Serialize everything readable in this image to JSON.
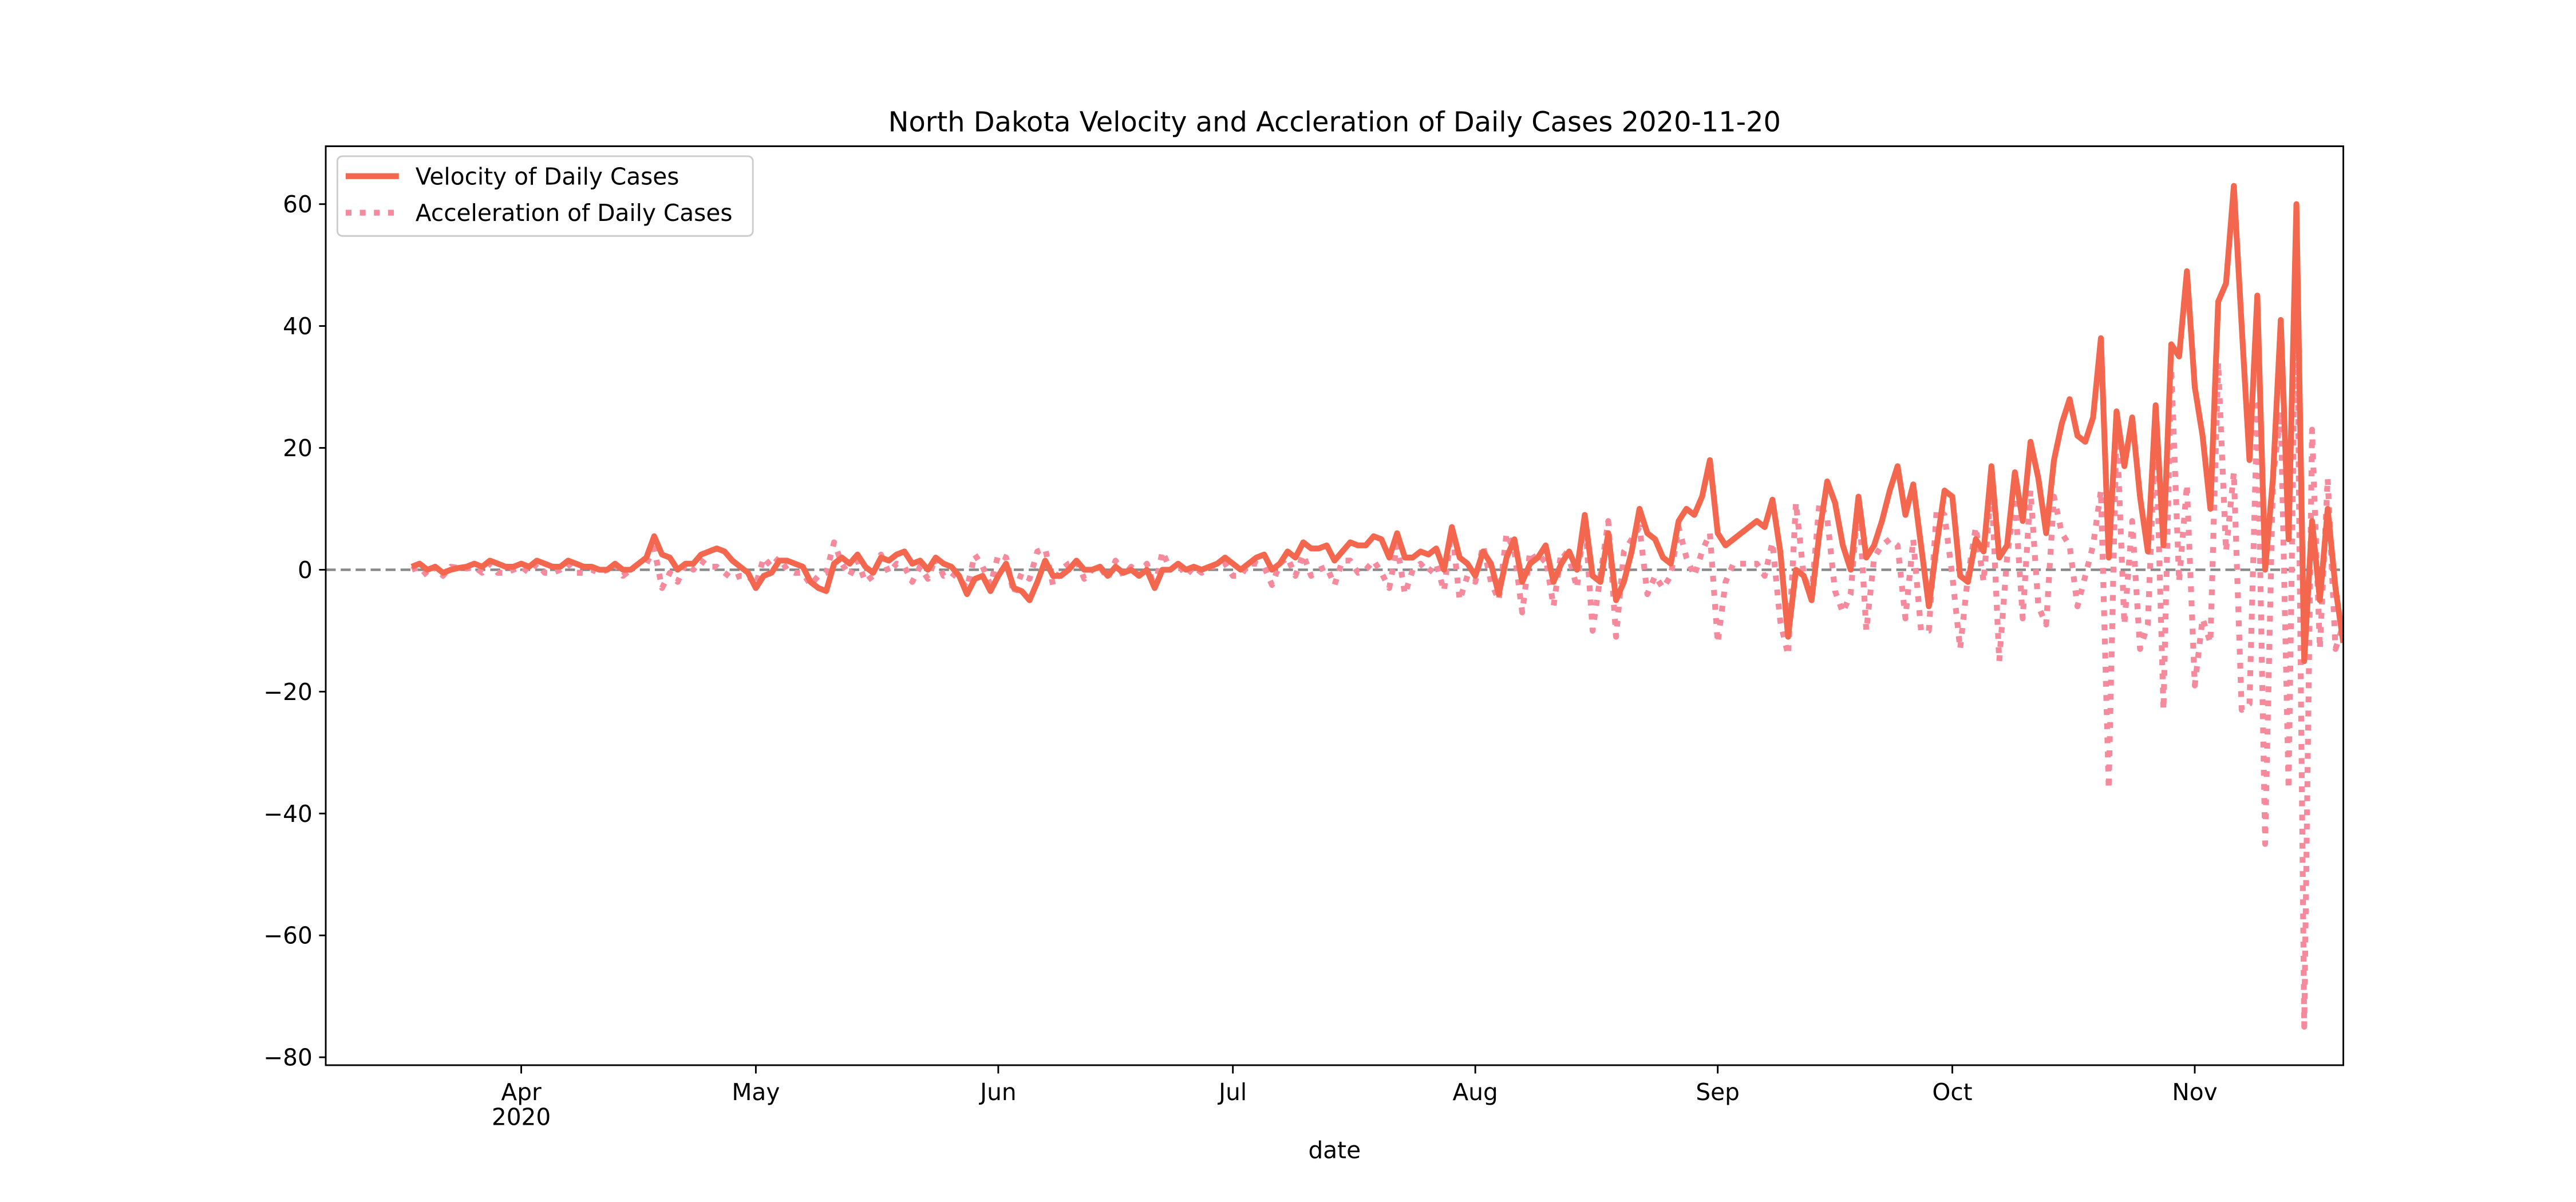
{
  "chart_data": {
    "type": "line",
    "title": "North Dakota Velocity and Accleration of Daily Cases 2020-11-20",
    "xlabel": "date",
    "xlim": [
      "2020-03-07",
      "2020-11-20"
    ],
    "xticks": [
      {
        "value": "2020-04-01",
        "label": "Apr"
      },
      {
        "value": "2020-05-01",
        "label": "May"
      },
      {
        "value": "2020-06-01",
        "label": "Jun"
      },
      {
        "value": "2020-07-01",
        "label": "Jul"
      },
      {
        "value": "2020-08-01",
        "label": "Aug"
      },
      {
        "value": "2020-09-01",
        "label": "Sep"
      },
      {
        "value": "2020-10-01",
        "label": "Oct"
      },
      {
        "value": "2020-11-01",
        "label": "Nov"
      }
    ],
    "xtick_year": "2020",
    "ylim": [
      -81.3,
      69.5
    ],
    "yticks": [
      {
        "value": -80,
        "label": "−80"
      },
      {
        "value": -60,
        "label": "−60"
      },
      {
        "value": -40,
        "label": "−40"
      },
      {
        "value": -20,
        "label": "−20"
      },
      0,
      20,
      40,
      60
    ],
    "hline": 0,
    "legend": "upper left",
    "x": [
      "2020-03-18",
      "2020-03-19",
      "2020-03-20",
      "2020-03-21",
      "2020-03-22",
      "2020-03-23",
      "2020-03-24",
      "2020-03-25",
      "2020-03-26",
      "2020-03-27",
      "2020-03-28",
      "2020-03-29",
      "2020-03-30",
      "2020-03-31",
      "2020-04-01",
      "2020-04-02",
      "2020-04-03",
      "2020-04-04",
      "2020-04-05",
      "2020-04-06",
      "2020-04-07",
      "2020-04-08",
      "2020-04-09",
      "2020-04-10",
      "2020-04-11",
      "2020-04-12",
      "2020-04-13",
      "2020-04-14",
      "2020-04-15",
      "2020-04-16",
      "2020-04-17",
      "2020-04-18",
      "2020-04-19",
      "2020-04-20",
      "2020-04-21",
      "2020-04-22",
      "2020-04-23",
      "2020-04-24",
      "2020-04-25",
      "2020-04-26",
      "2020-04-27",
      "2020-04-28",
      "2020-04-29",
      "2020-04-30",
      "2020-05-01",
      "2020-05-02",
      "2020-05-03",
      "2020-05-04",
      "2020-05-05",
      "2020-05-06",
      "2020-05-07",
      "2020-05-08",
      "2020-05-09",
      "2020-05-10",
      "2020-05-11",
      "2020-05-12",
      "2020-05-13",
      "2020-05-14",
      "2020-05-15",
      "2020-05-16",
      "2020-05-17",
      "2020-05-18",
      "2020-05-19",
      "2020-05-20",
      "2020-05-21",
      "2020-05-22",
      "2020-05-23",
      "2020-05-24",
      "2020-05-25",
      "2020-05-26",
      "2020-05-27",
      "2020-05-28",
      "2020-05-29",
      "2020-05-30",
      "2020-05-31",
      "2020-06-01",
      "2020-06-02",
      "2020-06-03",
      "2020-06-04",
      "2020-06-05",
      "2020-06-06",
      "2020-06-07",
      "2020-06-08",
      "2020-06-09",
      "2020-06-10",
      "2020-06-11",
      "2020-06-12",
      "2020-06-13",
      "2020-06-14",
      "2020-06-15",
      "2020-06-16",
      "2020-06-17",
      "2020-06-18",
      "2020-06-19",
      "2020-06-20",
      "2020-06-21",
      "2020-06-22",
      "2020-06-23",
      "2020-06-24",
      "2020-06-25",
      "2020-06-26",
      "2020-06-27",
      "2020-06-28",
      "2020-06-29",
      "2020-06-30",
      "2020-07-01",
      "2020-07-02",
      "2020-07-03",
      "2020-07-04",
      "2020-07-05",
      "2020-07-06",
      "2020-07-07",
      "2020-07-08",
      "2020-07-09",
      "2020-07-10",
      "2020-07-11",
      "2020-07-12",
      "2020-07-13",
      "2020-07-14",
      "2020-07-15",
      "2020-07-16",
      "2020-07-17",
      "2020-07-18",
      "2020-07-19",
      "2020-07-20",
      "2020-07-21",
      "2020-07-22",
      "2020-07-23",
      "2020-07-24",
      "2020-07-25",
      "2020-07-26",
      "2020-07-27",
      "2020-07-28",
      "2020-07-29",
      "2020-07-30",
      "2020-07-31",
      "2020-08-01",
      "2020-08-02",
      "2020-08-03",
      "2020-08-04",
      "2020-08-05",
      "2020-08-06",
      "2020-08-07",
      "2020-08-08",
      "2020-08-09",
      "2020-08-10",
      "2020-08-11",
      "2020-08-12",
      "2020-08-13",
      "2020-08-14",
      "2020-08-15",
      "2020-08-16",
      "2020-08-17",
      "2020-08-18",
      "2020-08-19",
      "2020-08-20",
      "2020-08-21",
      "2020-08-22",
      "2020-08-23",
      "2020-08-24",
      "2020-08-25",
      "2020-08-26",
      "2020-08-27",
      "2020-08-28",
      "2020-08-29",
      "2020-08-30",
      "2020-08-31",
      "2020-09-01",
      "2020-09-02",
      "2020-09-03",
      "2020-09-04",
      "2020-09-05",
      "2020-09-06",
      "2020-09-07",
      "2020-09-08",
      "2020-09-09",
      "2020-09-10",
      "2020-09-11",
      "2020-09-12",
      "2020-09-13",
      "2020-09-14",
      "2020-09-15",
      "2020-09-16",
      "2020-09-17",
      "2020-09-18",
      "2020-09-19",
      "2020-09-20",
      "2020-09-21",
      "2020-09-22",
      "2020-09-23",
      "2020-09-24",
      "2020-09-25",
      "2020-09-26",
      "2020-09-27",
      "2020-09-28",
      "2020-09-29",
      "2020-09-30",
      "2020-10-01",
      "2020-10-02",
      "2020-10-03",
      "2020-10-04",
      "2020-10-05",
      "2020-10-06",
      "2020-10-07",
      "2020-10-08",
      "2020-10-09",
      "2020-10-10",
      "2020-10-11",
      "2020-10-12",
      "2020-10-13",
      "2020-10-14",
      "2020-10-15",
      "2020-10-16",
      "2020-10-17",
      "2020-10-18",
      "2020-10-19",
      "2020-10-20",
      "2020-10-21",
      "2020-10-22",
      "2020-10-23",
      "2020-10-24",
      "2020-10-25",
      "2020-10-26",
      "2020-10-27",
      "2020-10-28",
      "2020-10-29",
      "2020-10-30",
      "2020-10-31",
      "2020-11-01",
      "2020-11-02",
      "2020-11-03",
      "2020-11-04",
      "2020-11-05",
      "2020-11-06",
      "2020-11-07",
      "2020-11-08",
      "2020-11-09",
      "2020-11-10",
      "2020-11-11",
      "2020-11-12",
      "2020-11-13",
      "2020-11-14",
      "2020-11-15",
      "2020-11-16",
      "2020-11-17",
      "2020-11-18",
      "2020-11-19",
      "2020-11-20"
    ],
    "series": [
      {
        "name": "Velocity of Daily Cases",
        "color": "#f4674f",
        "style": "solid",
        "values": [
          0.5,
          1,
          0,
          0.5,
          -0.5,
          0,
          0.3,
          0.5,
          1,
          0.5,
          1.5,
          1,
          0.5,
          0.5,
          1,
          0.5,
          1.5,
          1,
          0.5,
          0.5,
          1.5,
          1,
          0.5,
          0.5,
          0,
          0,
          1,
          0,
          0,
          1,
          2,
          5.5,
          2.5,
          2,
          0,
          1,
          1,
          2.5,
          3,
          3.5,
          3,
          1.5,
          0.5,
          -0.5,
          -3,
          -1,
          -0.5,
          1.5,
          1.5,
          1,
          0.5,
          -2,
          -3,
          -3.5,
          1,
          2,
          1,
          2.5,
          0.5,
          -0.5,
          2,
          1.5,
          2.5,
          3,
          1,
          1.5,
          0,
          2,
          1,
          0.5,
          -1,
          -4,
          -1.5,
          -1,
          -3.5,
          -1,
          1,
          -3,
          -3.5,
          -5,
          -2,
          1.5,
          -1,
          -1,
          0,
          1.5,
          0,
          0,
          0.5,
          -1,
          0.5,
          -0.5,
          0,
          -1,
          0,
          -3,
          0,
          0,
          1,
          0,
          0.5,
          0,
          0.5,
          1,
          2,
          1,
          0,
          1,
          2,
          2.5,
          0,
          1,
          3,
          2,
          4.5,
          3.5,
          3.5,
          4,
          1.5,
          3,
          4.5,
          4,
          4,
          5.5,
          5,
          2,
          6,
          2,
          2,
          3,
          2.5,
          3.5,
          0,
          7,
          2,
          1,
          -1,
          3,
          1,
          -4,
          2,
          5,
          -2,
          1,
          2,
          4,
          -2,
          1,
          3,
          0,
          9,
          -1,
          -2,
          6,
          -5,
          -2,
          3,
          10,
          6,
          5,
          2,
          1,
          8,
          10,
          9,
          12,
          18,
          6,
          4,
          5,
          6,
          7,
          8,
          7,
          11.5,
          3,
          -11,
          0,
          -1,
          -5,
          6,
          14.5,
          11,
          4,
          0,
          12,
          2,
          4,
          8,
          13,
          17,
          9,
          14,
          4,
          -6,
          4,
          13,
          12,
          -1,
          -2,
          5,
          3,
          17,
          2,
          4,
          16,
          8,
          21,
          15,
          6,
          18,
          24,
          28,
          22,
          21,
          25,
          38,
          2,
          26,
          17,
          25,
          12,
          3,
          27,
          4,
          37,
          35,
          49,
          30,
          22,
          10,
          44,
          47,
          63,
          40,
          18,
          45,
          0,
          15,
          41,
          5,
          60,
          -15,
          8,
          -5,
          10,
          -3,
          -12
        ]
      },
      {
        "name": "Acceleration of Daily Cases",
        "color": "#f58a9c",
        "style": "dotted",
        "values": [
          0,
          0.5,
          -1,
          0.5,
          -1,
          0.5,
          0.3,
          0.2,
          0.5,
          -0.5,
          1,
          -0.5,
          -0.5,
          0,
          0.5,
          -0.5,
          1,
          -0.5,
          -0.5,
          0,
          1,
          -0.5,
          -0.5,
          0,
          -0.5,
          0,
          1,
          -1,
          0,
          1,
          1,
          3.5,
          -3,
          -0.5,
          -2,
          1,
          0,
          1.5,
          0.5,
          0.5,
          -0.5,
          -1.5,
          -1,
          -1,
          -2.5,
          2,
          0.5,
          2,
          0,
          -0.5,
          -0.5,
          -2.5,
          -1,
          -0.5,
          4.5,
          1,
          -1,
          1.5,
          -2,
          -1,
          2.5,
          -0.5,
          1,
          0.5,
          -2,
          0.5,
          -1.5,
          2,
          -1,
          -0.5,
          -1.5,
          -3,
          2.5,
          0.5,
          -2.5,
          2.5,
          2,
          -4,
          -0.5,
          -1.5,
          3,
          3.5,
          -2.5,
          0,
          1,
          1.5,
          -1.5,
          0,
          0.5,
          -1.5,
          1.5,
          -1,
          0.5,
          -1,
          1,
          -3,
          3,
          0,
          1,
          -1,
          0.5,
          -0.5,
          0.5,
          0.5,
          1,
          -1,
          -1,
          1,
          1,
          0.5,
          -2.5,
          1,
          2,
          -1,
          2.5,
          -1,
          0,
          0.5,
          -2.5,
          1.5,
          1.5,
          -0.5,
          0,
          1.5,
          -0.5,
          -3,
          4,
          -4,
          0,
          1,
          -0.5,
          1,
          -3.5,
          7,
          -5,
          -1,
          -2,
          4,
          -2,
          -5,
          6,
          3,
          -7,
          3,
          1,
          2,
          -6,
          3,
          2,
          -3,
          9,
          -10,
          -1,
          8,
          -11,
          3,
          5,
          7,
          -4,
          -1,
          -3,
          -1,
          7,
          2,
          -1,
          3,
          6,
          -12,
          -2,
          1,
          1,
          1,
          1,
          -1,
          4.5,
          -8.5,
          -14,
          11,
          -1,
          -4,
          11,
          8.5,
          -3.5,
          -7,
          -4,
          12,
          -10,
          2,
          4,
          5,
          4,
          -8,
          5,
          -10,
          -10,
          10,
          9,
          -1,
          -13,
          -1,
          7,
          -2,
          14,
          -15,
          2,
          12,
          -8,
          13,
          -6,
          -9,
          12,
          6,
          4,
          -6,
          -1,
          4,
          13,
          -36,
          24,
          -9,
          8,
          -13,
          -9,
          24,
          -23,
          33,
          -2,
          14,
          -19,
          -8,
          -12,
          34,
          3,
          16,
          -23,
          -22,
          27,
          -45,
          15,
          26,
          -36,
          55,
          -75,
          23,
          -13,
          15,
          -13,
          -9
        ]
      }
    ]
  }
}
